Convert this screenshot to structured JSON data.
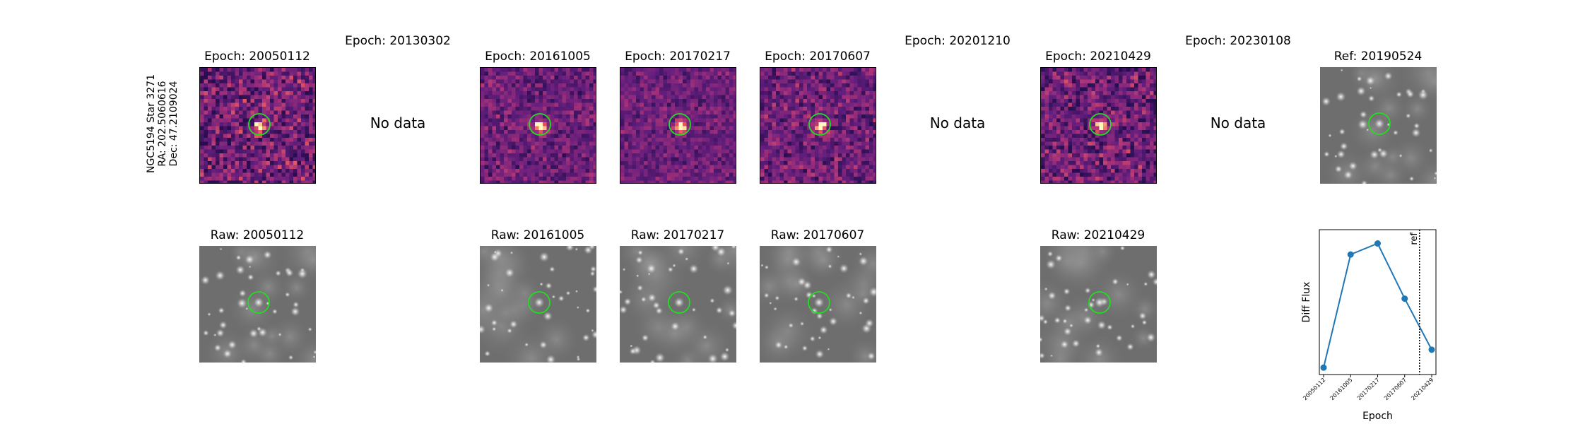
{
  "star_label": {
    "name": "NGC5194 Star 3271",
    "ra": "RA: 202.5060616",
    "dec": "Dec: 47.2109024"
  },
  "colors": {
    "circle": "#22dd22",
    "line": "#1f77b4"
  },
  "panels": [
    {
      "id": "e1",
      "title": "Epoch: 20050112",
      "kind": "diff",
      "seed": 11,
      "noise": 0.55
    },
    {
      "id": "e2",
      "title": "Epoch: 20130302",
      "kind": "nodata",
      "message": "No data"
    },
    {
      "id": "e3",
      "title": "Epoch: 20161005",
      "kind": "diff",
      "seed": 23,
      "noise": 0.35
    },
    {
      "id": "e4",
      "title": "Epoch: 20170217",
      "kind": "diff",
      "seed": 37,
      "noise": 0.3
    },
    {
      "id": "e5",
      "title": "Epoch: 20170607",
      "kind": "diff",
      "seed": 41,
      "noise": 0.4
    },
    {
      "id": "e6",
      "title": "Epoch: 20201210",
      "kind": "nodata",
      "message": "No data"
    },
    {
      "id": "e7",
      "title": "Epoch: 20210429",
      "kind": "diff",
      "seed": 53,
      "noise": 0.5
    },
    {
      "id": "e8",
      "title": "Epoch: 20230108",
      "kind": "nodata",
      "message": "No data"
    },
    {
      "id": "ref",
      "title": "Ref: 20190524",
      "kind": "raw",
      "seed": 7
    }
  ],
  "raw_panels": [
    {
      "id": "r1",
      "title": "Raw: 20050112",
      "seed": 7
    },
    {
      "id": "r3",
      "title": "Raw: 20161005",
      "seed": 7
    },
    {
      "id": "r4",
      "title": "Raw: 20170217",
      "seed": 7
    },
    {
      "id": "r5",
      "title": "Raw: 20170607",
      "seed": 7
    },
    {
      "id": "r7",
      "title": "Raw: 20210429",
      "seed": 7
    }
  ],
  "chart_data": {
    "type": "line",
    "title": "",
    "xlabel": "Epoch",
    "ylabel": "Diff Flux",
    "categories": [
      "20050112",
      "20161005",
      "20170217",
      "20170607",
      "20210429"
    ],
    "values": [
      0.0,
      0.82,
      0.9,
      0.5,
      0.13
    ],
    "ylim": [
      -0.05,
      1.0
    ],
    "ref_line": {
      "label": "ref",
      "position_between": [
        3,
        4
      ],
      "fraction": 0.55
    },
    "grid": false,
    "legend": "none"
  }
}
